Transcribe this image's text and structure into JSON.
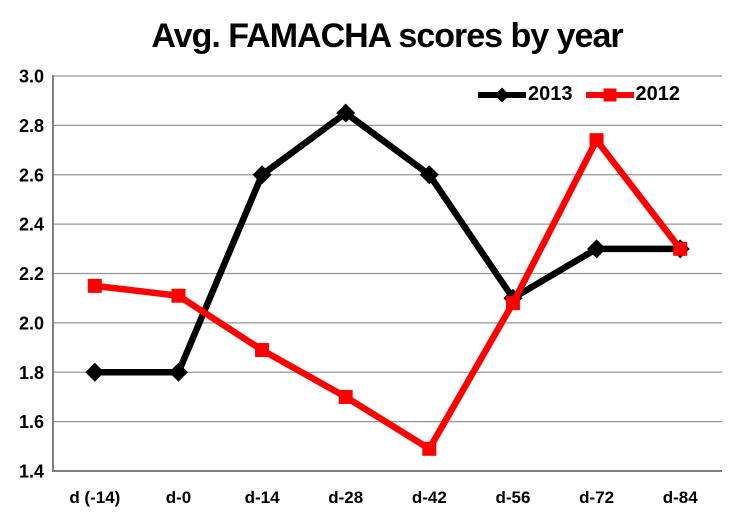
{
  "title": "Avg. FAMACHA scores by year",
  "chart_data": {
    "type": "line",
    "title": "Avg. FAMACHA scores by year",
    "categories": [
      "d (-14)",
      "d-0",
      "d-14",
      "d-28",
      "d-42",
      "d-56",
      "d-72",
      "d-84"
    ],
    "series": [
      {
        "name": "2013",
        "color": "#000000",
        "marker": "diamond",
        "values": [
          1.8,
          1.8,
          2.6,
          2.85,
          2.6,
          2.1,
          2.3,
          2.3
        ]
      },
      {
        "name": "2012",
        "color": "#FF0000",
        "marker": "square",
        "values": [
          2.15,
          2.11,
          1.89,
          1.7,
          1.49,
          2.08,
          2.74,
          2.3
        ]
      }
    ],
    "xlabel": "",
    "ylabel": "",
    "ylim": [
      1.4,
      3.0
    ],
    "y_ticks": [
      "3.0",
      "2.8",
      "2.6",
      "2.4",
      "2.2",
      "2.0",
      "1.8",
      "1.6",
      "1.4"
    ],
    "y_tick_step": 0.2,
    "grid": "horizontal",
    "legend_position": "top-right-inside",
    "colors": {
      "grid": "#969696",
      "axis": "#808080",
      "text": "#000000",
      "background": "#FFFFFF"
    }
  }
}
